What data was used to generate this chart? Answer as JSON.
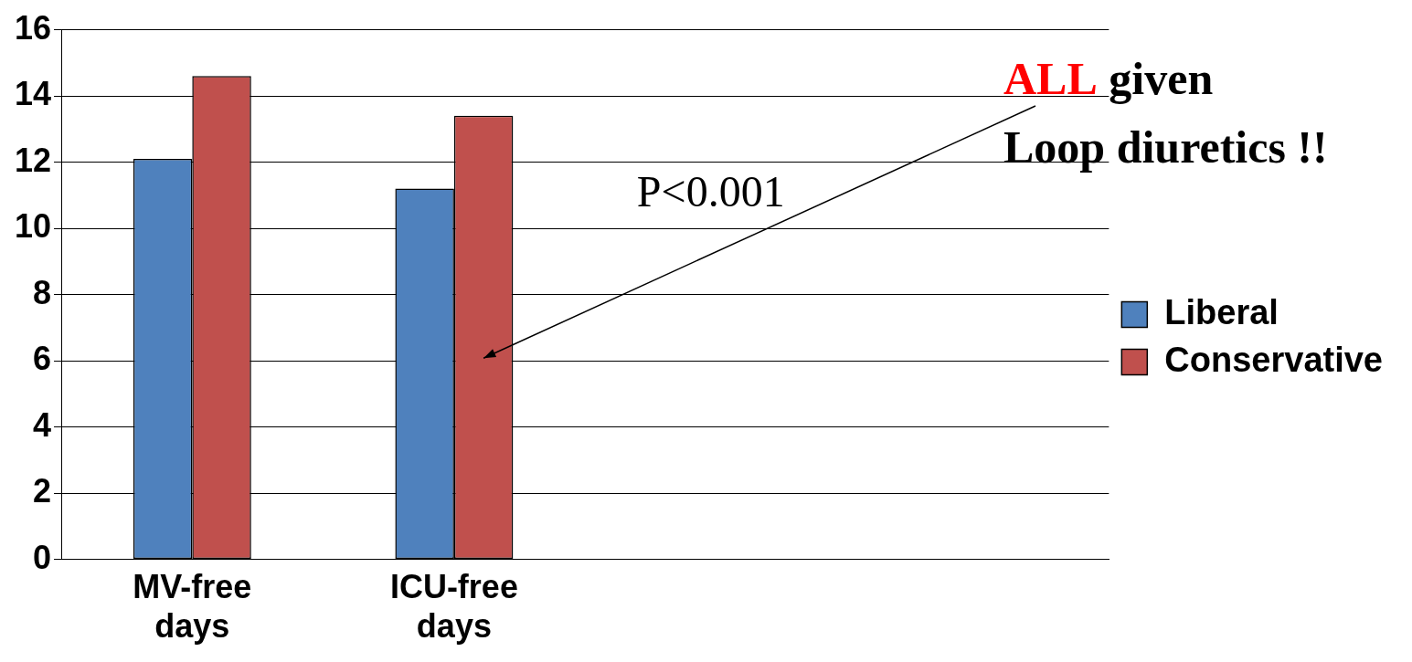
{
  "chart_data": {
    "type": "bar",
    "categories": [
      "MV-free days",
      "ICU-free days",
      null,
      null
    ],
    "series": [
      {
        "name": "Liberal",
        "color": "#4f81bd",
        "values": [
          12.1,
          11.2,
          null,
          null
        ]
      },
      {
        "name": "Conservative",
        "color": "#c0504d",
        "values": [
          14.6,
          13.4,
          null,
          null
        ]
      }
    ],
    "ylim": [
      0,
      16
    ],
    "yticks": [
      0,
      2,
      4,
      6,
      8,
      10,
      12,
      14,
      16
    ],
    "grid": "y",
    "legend": "right",
    "annotations": [
      "P<0.001",
      "ALL given Loop diuretics !!"
    ]
  }
}
